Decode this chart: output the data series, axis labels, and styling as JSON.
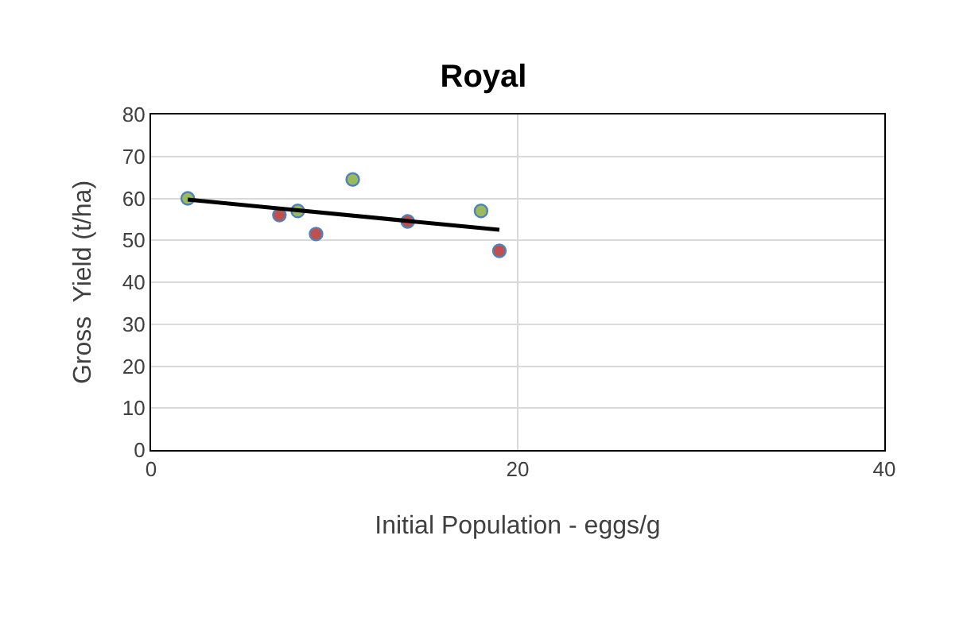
{
  "chart_data": {
    "type": "scatter",
    "title": "Royal",
    "xlabel": "Initial Population - eggs/g",
    "ylabel": "Gross  Yield (t/ha)",
    "series": [
      {
        "color": "#9bbb59",
        "x": [
          2,
          8,
          11,
          18
        ],
        "values": [
          60,
          57,
          64.5,
          57
        ]
      },
      {
        "color": "#c0504d",
        "x": [
          7,
          9,
          14,
          19
        ],
        "values": [
          56,
          51.5,
          54.5,
          47.5
        ]
      },
      {
        "type": "line",
        "color": "#000000",
        "x": [
          2,
          19
        ],
        "values": [
          59.7,
          52.5
        ],
        "marker": "none"
      }
    ],
    "xlim": [
      0,
      40
    ],
    "xticks": [
      0,
      20,
      40
    ],
    "ylim": [
      0,
      80
    ],
    "yticks": [
      0,
      10,
      20,
      30,
      40,
      50,
      60,
      70,
      80
    ],
    "grid": true,
    "legend": false,
    "marker": "circle",
    "line_style": "solid"
  }
}
